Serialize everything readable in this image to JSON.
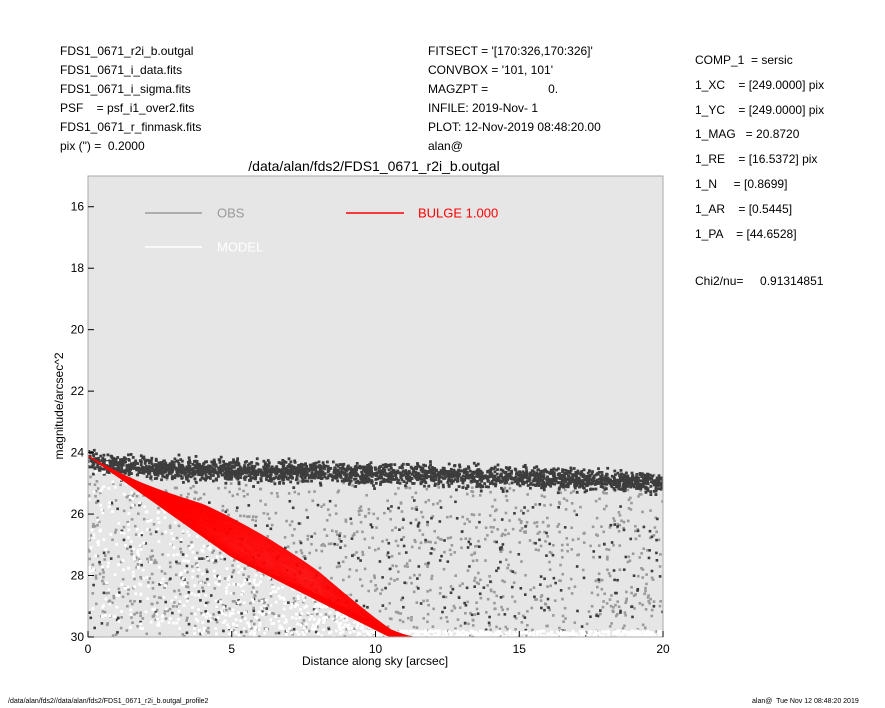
{
  "header": {
    "left_lines": [
      "FDS1_0671_r2i_b.outgal",
      "FDS1_0671_i_data.fits",
      "FDS1_0671_i_sigma.fits",
      "PSF    = psf_i1_over2.fits",
      "FDS1_0671_r_finmask.fits",
      "pix (\") =  0.2000"
    ],
    "middle_lines": [
      "FITSECT = '[170:326,170:326]'",
      "CONVBOX = '101, 101'",
      "MAGZPT =                  0.",
      "INFILE: 2019-Nov- 1",
      "PLOT: 12-Nov-2019 08:48:20.00",
      "alan@"
    ]
  },
  "params": {
    "lines": [
      "COMP_1  = sersic",
      "1_XC    = [249.0000] pix",
      "1_YC    = [249.0000] pix",
      "1_MAG   = 20.8720",
      "1_RE    = [16.5372] pix",
      "1_N     = [0.8699]",
      "1_AR    = [0.5445]",
      "1_PA    = [44.6528]"
    ],
    "chi_label": "Chi2/nu=",
    "chi_value": "0.91314851"
  },
  "footer": {
    "left": "/data/alan/fds2//data/alan/fds2/FDS1_0671_r2i_b.outgal_profile2",
    "right": "alan@  Tue Nov 12 08:48:20 2019"
  },
  "colors": {
    "obs": "#3d3d3d",
    "obs_light": "#9a9a9a",
    "model": "#ffffff",
    "bulge": "#ff0000",
    "plot_bg": "#e6e6e6"
  },
  "chart_data": {
    "type": "scatter",
    "title": "/data/alan/fds2/FDS1_0671_r2i_b.outgal",
    "xlabel": "Distance along sky [arcsec]",
    "ylabel": "magnitude/arcsec^2",
    "xlim": [
      0,
      20
    ],
    "ylim": [
      30,
      15
    ],
    "y_inverted": true,
    "xticks": [
      0,
      5,
      10,
      15,
      20
    ],
    "yticks": [
      16,
      18,
      20,
      22,
      24,
      26,
      28,
      30
    ],
    "grid": false,
    "legend": [
      {
        "name": "OBS",
        "color": "#9a9a9a",
        "position": "top-left"
      },
      {
        "name": "MODEL",
        "color": "#ffffff",
        "position": "top-left"
      },
      {
        "name": "BULGE  1.000",
        "color": "#ff0000",
        "position": "top-center"
      }
    ],
    "series": [
      {
        "name": "OBS",
        "description_trend": [
          [
            0,
            24.1
          ],
          [
            2,
            24.3
          ],
          [
            5,
            24.4
          ],
          [
            10,
            24.5
          ],
          [
            15,
            24.6
          ],
          [
            20,
            24.8
          ]
        ]
      },
      {
        "name": "MODEL",
        "description_trend": [
          [
            0,
            24.1
          ],
          [
            5,
            27.2
          ],
          [
            10,
            30.0
          ]
        ]
      },
      {
        "name": "BULGE  1.000",
        "envelope_inner": [
          [
            0,
            24.1
          ],
          [
            5,
            27.4
          ],
          [
            10.5,
            30.0
          ]
        ],
        "envelope_outer": [
          [
            0,
            24.1
          ],
          [
            4,
            25.6
          ],
          [
            8,
            27.7
          ],
          [
            11.3,
            30.0
          ]
        ]
      }
    ]
  }
}
